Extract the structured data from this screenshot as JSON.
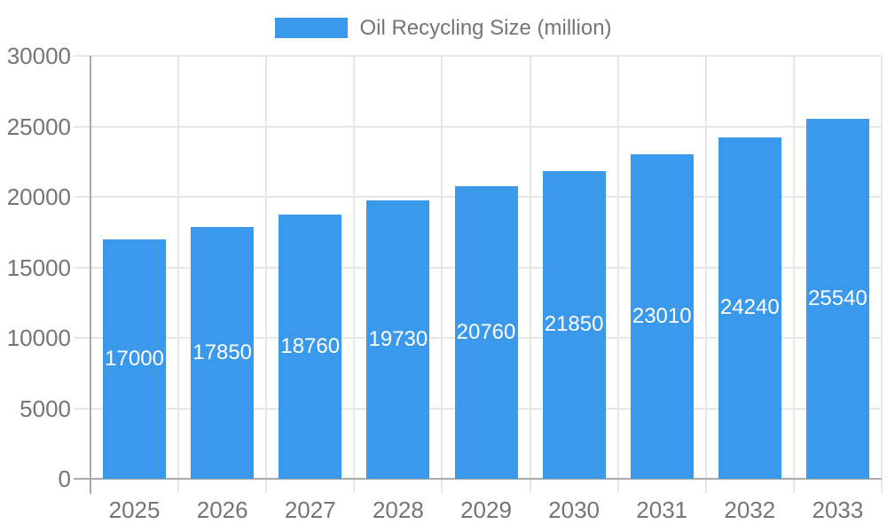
{
  "legend": {
    "label": "Oil Recycling Size (million)"
  },
  "colors": {
    "bar": "#3B99EC",
    "grid": "#E7E7E7",
    "axis": "#ABABAB",
    "text": "#757575",
    "value_text": "#FFFFFF",
    "background": "#FFFFFF"
  },
  "chart_data": {
    "type": "bar",
    "title": "Oil Recycling Size (million)",
    "categories": [
      "2025",
      "2026",
      "2027",
      "2028",
      "2029",
      "2030",
      "2031",
      "2032",
      "2033"
    ],
    "values": [
      17000,
      17850,
      18760,
      19730,
      20760,
      21850,
      23010,
      24240,
      25540
    ],
    "yticks": [
      0,
      5000,
      10000,
      15000,
      20000,
      25000,
      30000
    ],
    "xlabel": "",
    "ylabel": "",
    "ylim": [
      0,
      30000
    ],
    "grid": true,
    "legend_position": "top",
    "value_label_style": "inside-center-white"
  }
}
